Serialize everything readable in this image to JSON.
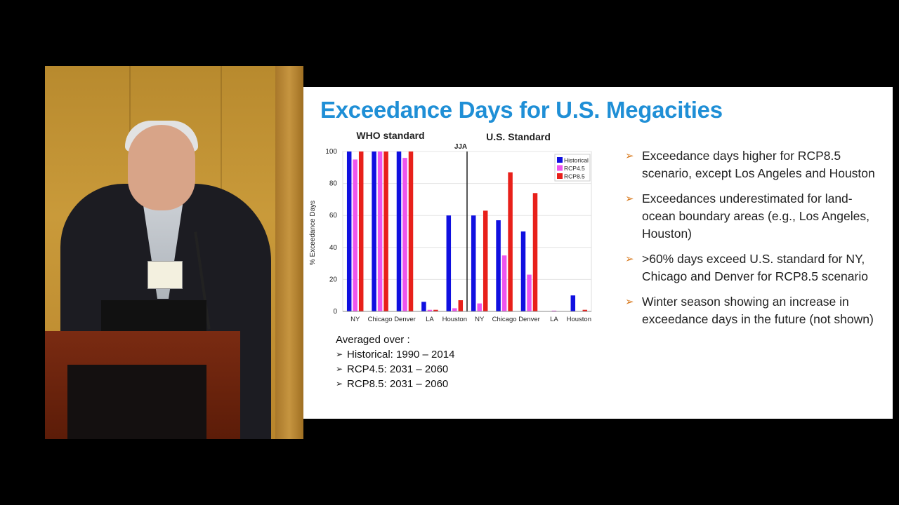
{
  "slide": {
    "title": "Exceedance Days for U.S. Megacities",
    "averaged_over": {
      "heading": "Averaged over :",
      "items": [
        "Historical: 1990 – 2014",
        "RCP4.5: 2031 – 2060",
        "RCP8.5: 2031 – 2060"
      ]
    },
    "bullets": [
      "Exceedance days higher for RCP8.5 scenario, except Los Angeles and Houston",
      "Exceedances underestimated for land-ocean boundary areas (e.g., Los Angeles, Houston)",
      ">60% days exceed U.S. standard for NY, Chicago and Denver for RCP8.5 scenario",
      "Winter season showing an increase in exceedance days in the future (not shown)"
    ],
    "colors": {
      "title": "#1f8fd6",
      "bullet_mark": "#d87a1e"
    }
  },
  "chart_data": {
    "type": "bar",
    "group_labels": [
      "WHO standard",
      "U.S. Standard"
    ],
    "divider_label": "JJA",
    "categories": [
      "NY",
      "Chicago",
      "Denver",
      "LA",
      "Houston",
      "NY",
      "Chicago",
      "Denver",
      "LA",
      "Houston"
    ],
    "series": [
      {
        "name": "Historical",
        "color": "#1010e0",
        "values": [
          100,
          100,
          100,
          6,
          60,
          60,
          57,
          50,
          0,
          10
        ]
      },
      {
        "name": "RCP4.5",
        "color": "#ee55ee",
        "values": [
          95,
          100,
          96,
          1,
          2,
          5,
          35,
          23,
          0.5,
          0
        ]
      },
      {
        "name": "RCP8.5",
        "color": "#e8201a",
        "values": [
          100,
          100,
          100,
          1,
          7,
          63,
          87,
          74,
          0,
          1
        ]
      }
    ],
    "ylabel": "% Exceedance Days",
    "xlabel": "",
    "ylim": [
      0,
      100
    ],
    "yticks": [
      0,
      20,
      40,
      60,
      80,
      100
    ],
    "grid": true,
    "legend_position": "top-right"
  }
}
